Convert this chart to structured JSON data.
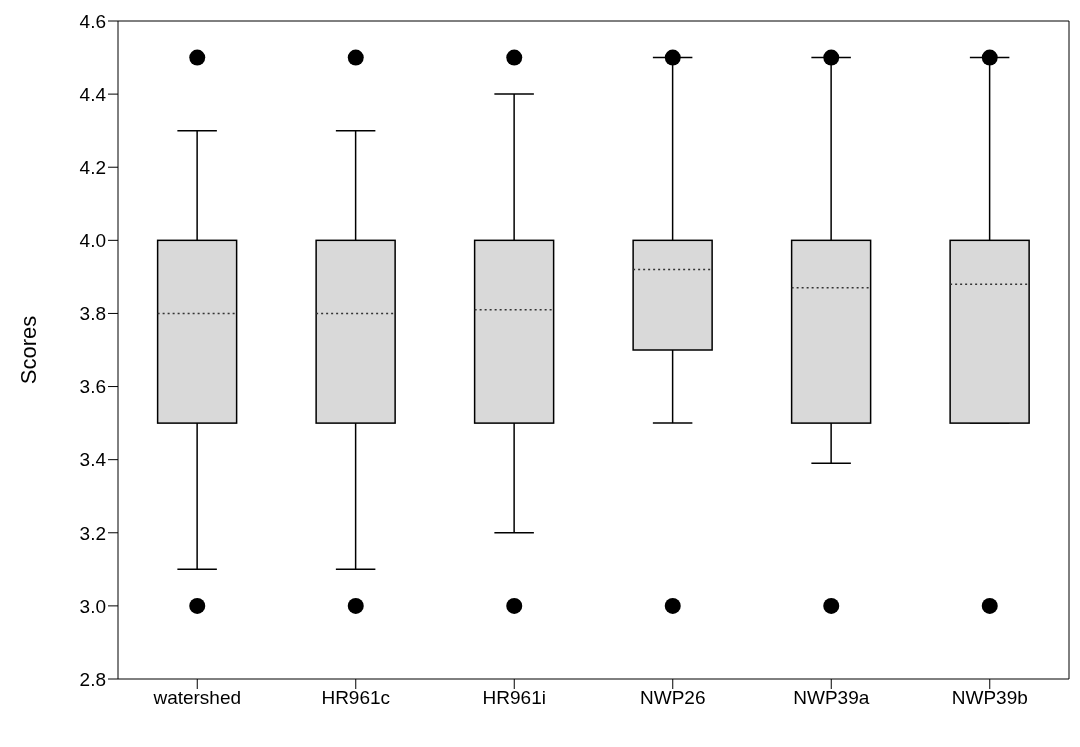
{
  "chart_data": {
    "type": "box",
    "ylabel": "Scores",
    "categories": [
      "watershed",
      "HR961c",
      "HR961i",
      "NWP26",
      "NWP39a",
      "NWP39b"
    ],
    "ylim": [
      2.8,
      4.6
    ],
    "yticks": [
      {
        "value": 2.8,
        "label": "2.8"
      },
      {
        "value": 3.0,
        "label": "3.0"
      },
      {
        "value": 3.2,
        "label": "3.2"
      },
      {
        "value": 3.4,
        "label": "3.4"
      },
      {
        "value": 3.6,
        "label": "3.6"
      },
      {
        "value": 3.8,
        "label": "3.8"
      },
      {
        "value": 4.0,
        "label": "4.0"
      },
      {
        "value": 4.2,
        "label": "4.2"
      },
      {
        "value": 4.4,
        "label": "4.4"
      },
      {
        "value": 4.6,
        "label": "4.6"
      }
    ],
    "color": "#d9d9d9",
    "grid": false,
    "legend": false,
    "boxes": [
      {
        "low": 3.1,
        "q1": 3.5,
        "median": 3.8,
        "q3": 4.0,
        "high": 4.3,
        "outliers": [
          3.0,
          4.5
        ]
      },
      {
        "low": 3.1,
        "q1": 3.5,
        "median": 3.8,
        "q3": 4.0,
        "high": 4.3,
        "outliers": [
          3.0,
          4.5
        ]
      },
      {
        "low": 3.2,
        "q1": 3.5,
        "median": 3.81,
        "q3": 4.0,
        "high": 4.4,
        "outliers": [
          3.0,
          4.5
        ]
      },
      {
        "low": 3.5,
        "q1": 3.7,
        "median": 3.92,
        "q3": 4.0,
        "high": 4.5,
        "outliers": [
          3.0,
          4.5
        ]
      },
      {
        "low": 3.39,
        "q1": 3.5,
        "median": 3.87,
        "q3": 4.0,
        "high": 4.5,
        "outliers": [
          3.0,
          4.5
        ]
      },
      {
        "low": 3.5,
        "q1": 3.5,
        "median": 3.88,
        "q3": 4.0,
        "high": 4.5,
        "outliers": [
          3.0,
          4.5
        ]
      }
    ]
  }
}
